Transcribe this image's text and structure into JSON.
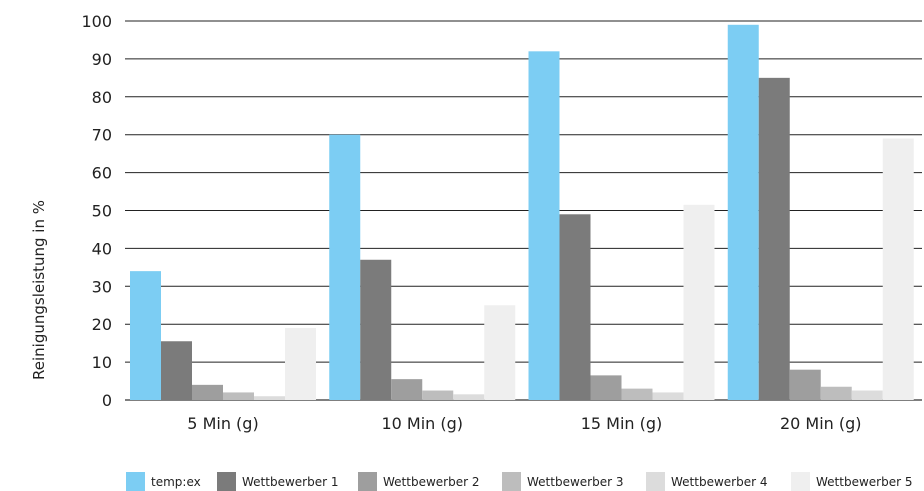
{
  "chart_data": {
    "type": "bar",
    "title": "",
    "xlabel": "",
    "ylabel": "Reinigungsleistung in %",
    "ylim": [
      0,
      100
    ],
    "yticks": [
      0,
      10,
      20,
      30,
      40,
      50,
      60,
      70,
      80,
      90,
      100
    ],
    "grid": true,
    "legend_position": "bottom",
    "categories": [
      "5 Min (g)",
      "10 Min (g)",
      "15 Min (g)",
      "20 Min (g)"
    ],
    "series": [
      {
        "name": "temp:ex",
        "color": "#7ccdf3",
        "values": [
          34,
          70,
          92,
          99
        ]
      },
      {
        "name": "Wettbewerber 1",
        "color": "#7b7b7b",
        "values": [
          15.5,
          37,
          49,
          85
        ]
      },
      {
        "name": "Wettbewerber 2",
        "color": "#9e9e9e",
        "values": [
          4,
          5.5,
          6.5,
          8
        ]
      },
      {
        "name": "Wettbewerber 3",
        "color": "#bdbdbd",
        "values": [
          2,
          2.5,
          3,
          3.5
        ]
      },
      {
        "name": "Wettbewerber 4",
        "color": "#dcdcdc",
        "values": [
          1,
          1.5,
          2,
          2.5
        ]
      },
      {
        "name": "Wettbewerber 5",
        "color": "#efefef",
        "values": [
          19,
          25,
          51.5,
          69
        ]
      }
    ]
  }
}
